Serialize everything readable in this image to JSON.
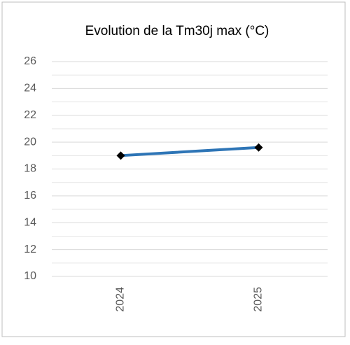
{
  "chart_data": {
    "type": "line",
    "title": "Evolution de la Tm30j max (°C)",
    "categories": [
      "2024",
      "2025"
    ],
    "series": [
      {
        "name": "Tm30j max",
        "color": "#2e75b6",
        "values": [
          19.0,
          19.6
        ]
      }
    ],
    "ylim": [
      10,
      26
    ],
    "yticks": [
      10,
      12,
      14,
      16,
      18,
      20,
      22,
      24,
      26
    ],
    "minor_yticks": [
      11,
      13,
      15,
      17,
      19,
      21,
      23,
      25
    ],
    "grid": true,
    "marker_color": "#000000"
  }
}
